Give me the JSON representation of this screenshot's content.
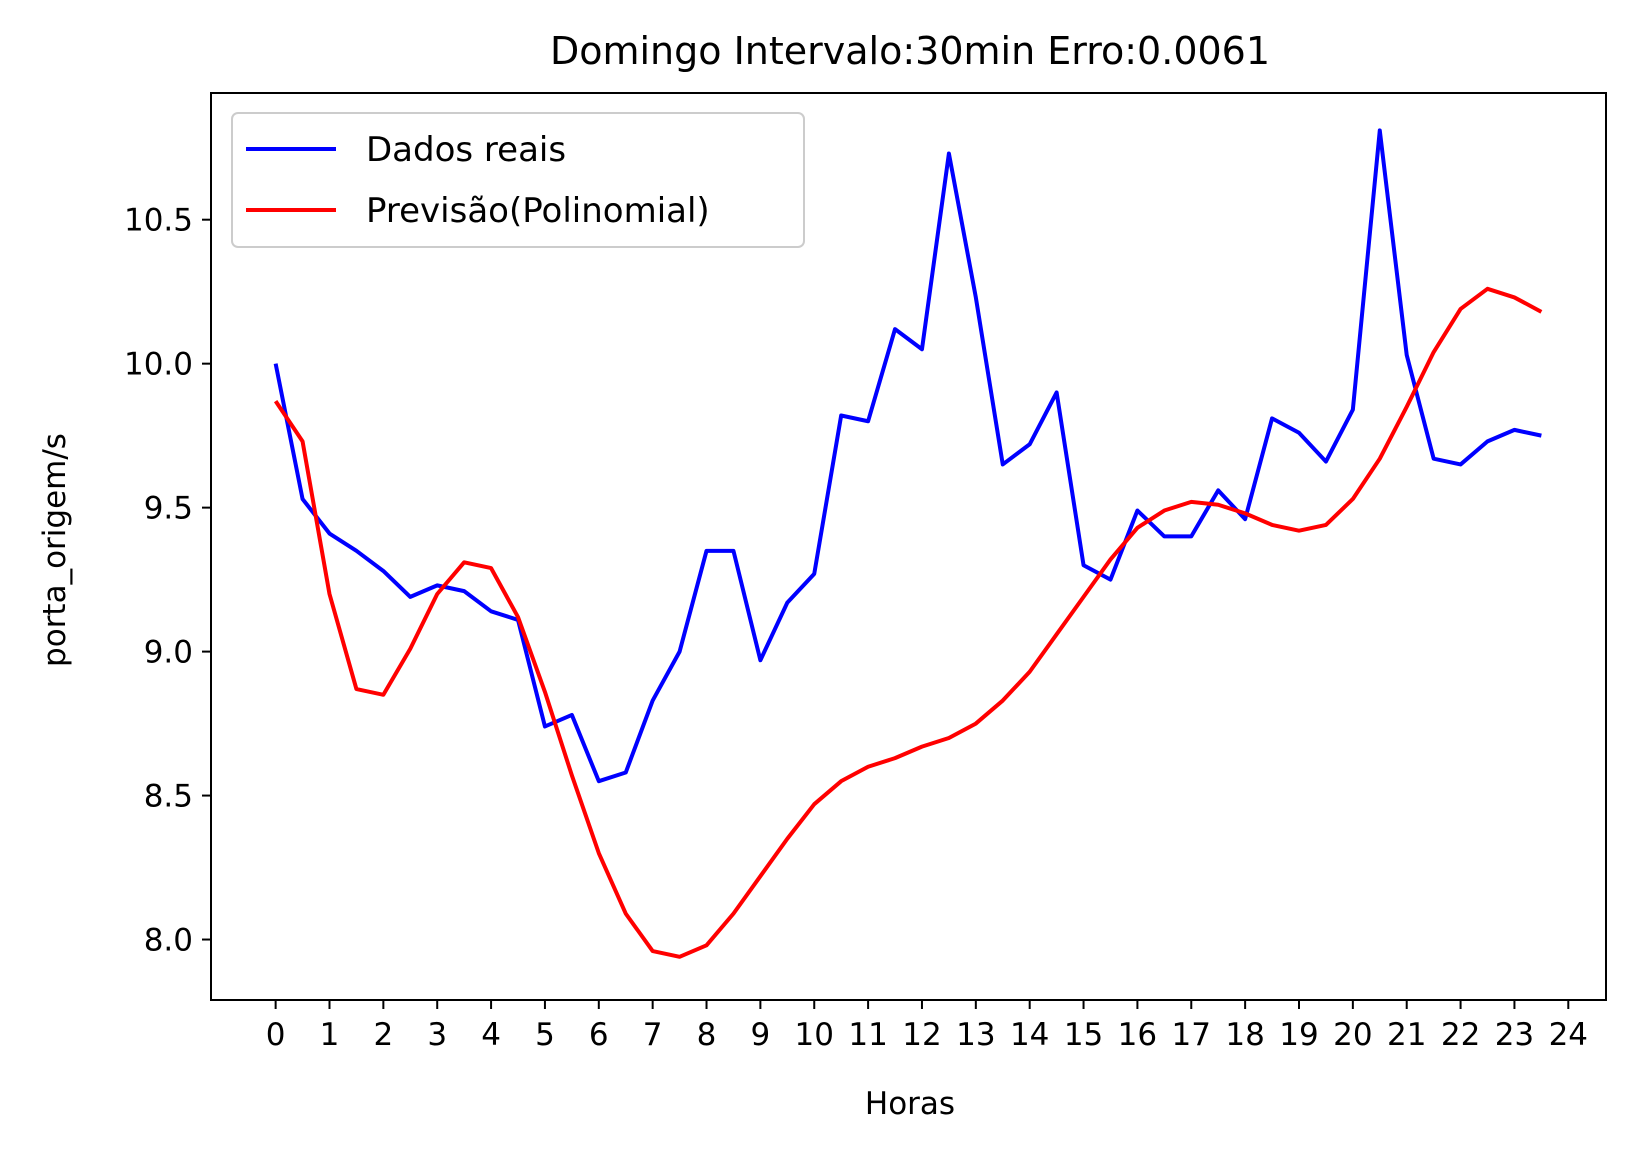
{
  "chart_data": {
    "type": "line",
    "title": "Domingo Intervalo:30min Erro:0.0061",
    "xlabel": "Horas",
    "ylabel": "porta_origem/s",
    "xlim": [
      -1.2,
      24.7
    ],
    "ylim": [
      7.79,
      10.94
    ],
    "xticks": [
      0,
      1,
      2,
      3,
      4,
      5,
      6,
      7,
      8,
      9,
      10,
      11,
      12,
      13,
      14,
      15,
      16,
      17,
      18,
      19,
      20,
      21,
      22,
      23,
      24
    ],
    "xtick_labels": [
      "0",
      "1",
      "2",
      "3",
      "4",
      "5",
      "6",
      "7",
      "8",
      "9",
      "10",
      "11",
      "12",
      "13",
      "14",
      "15",
      "16",
      "17",
      "18",
      "19",
      "20",
      "21",
      "22",
      "23",
      "24"
    ],
    "yticks": [
      8.0,
      8.5,
      9.0,
      9.5,
      10.0,
      10.5
    ],
    "ytick_labels": [
      "8.0",
      "8.5",
      "9.0",
      "9.5",
      "10.0",
      "10.5"
    ],
    "grid": false,
    "legend_position": "upper left",
    "x": [
      0,
      0.5,
      1,
      1.5,
      2,
      2.5,
      3,
      3.5,
      4,
      4.5,
      5,
      5.5,
      6,
      6.5,
      7,
      7.5,
      8,
      8.5,
      9,
      9.5,
      10,
      10.5,
      11,
      11.5,
      12,
      12.5,
      13,
      13.5,
      14,
      14.5,
      15,
      15.5,
      16,
      16.5,
      17,
      17.5,
      18,
      18.5,
      19,
      19.5,
      20,
      20.5,
      21,
      21.5,
      22,
      22.5,
      23,
      23.5
    ],
    "series": [
      {
        "name": "Dados reais",
        "color": "#0000ff",
        "values": [
          10.0,
          9.53,
          9.41,
          9.35,
          9.28,
          9.19,
          9.23,
          9.21,
          9.14,
          9.11,
          8.74,
          8.78,
          8.55,
          8.58,
          8.83,
          9.0,
          9.35,
          9.35,
          8.97,
          9.17,
          9.27,
          9.82,
          9.8,
          10.12,
          10.05,
          10.73,
          10.23,
          9.65,
          9.72,
          9.9,
          9.3,
          9.25,
          9.49,
          9.4,
          9.4,
          9.56,
          9.46,
          9.81,
          9.76,
          9.66,
          9.84,
          10.81,
          10.03,
          9.67,
          9.65,
          9.73,
          9.77,
          9.75
        ]
      },
      {
        "name": "Previsão(Polinomial)",
        "color": "#ff0000",
        "values": [
          9.87,
          9.73,
          9.2,
          8.87,
          8.85,
          9.01,
          9.2,
          9.31,
          9.29,
          9.12,
          8.86,
          8.57,
          8.3,
          8.09,
          7.96,
          7.94,
          7.98,
          8.09,
          8.22,
          8.35,
          8.47,
          8.55,
          8.6,
          8.63,
          8.67,
          8.7,
          8.75,
          8.83,
          8.93,
          9.06,
          9.19,
          9.32,
          9.43,
          9.49,
          9.52,
          9.51,
          9.48,
          9.44,
          9.42,
          9.44,
          9.53,
          9.67,
          9.85,
          10.04,
          10.19,
          10.26,
          10.23,
          10.18
        ]
      }
    ]
  }
}
